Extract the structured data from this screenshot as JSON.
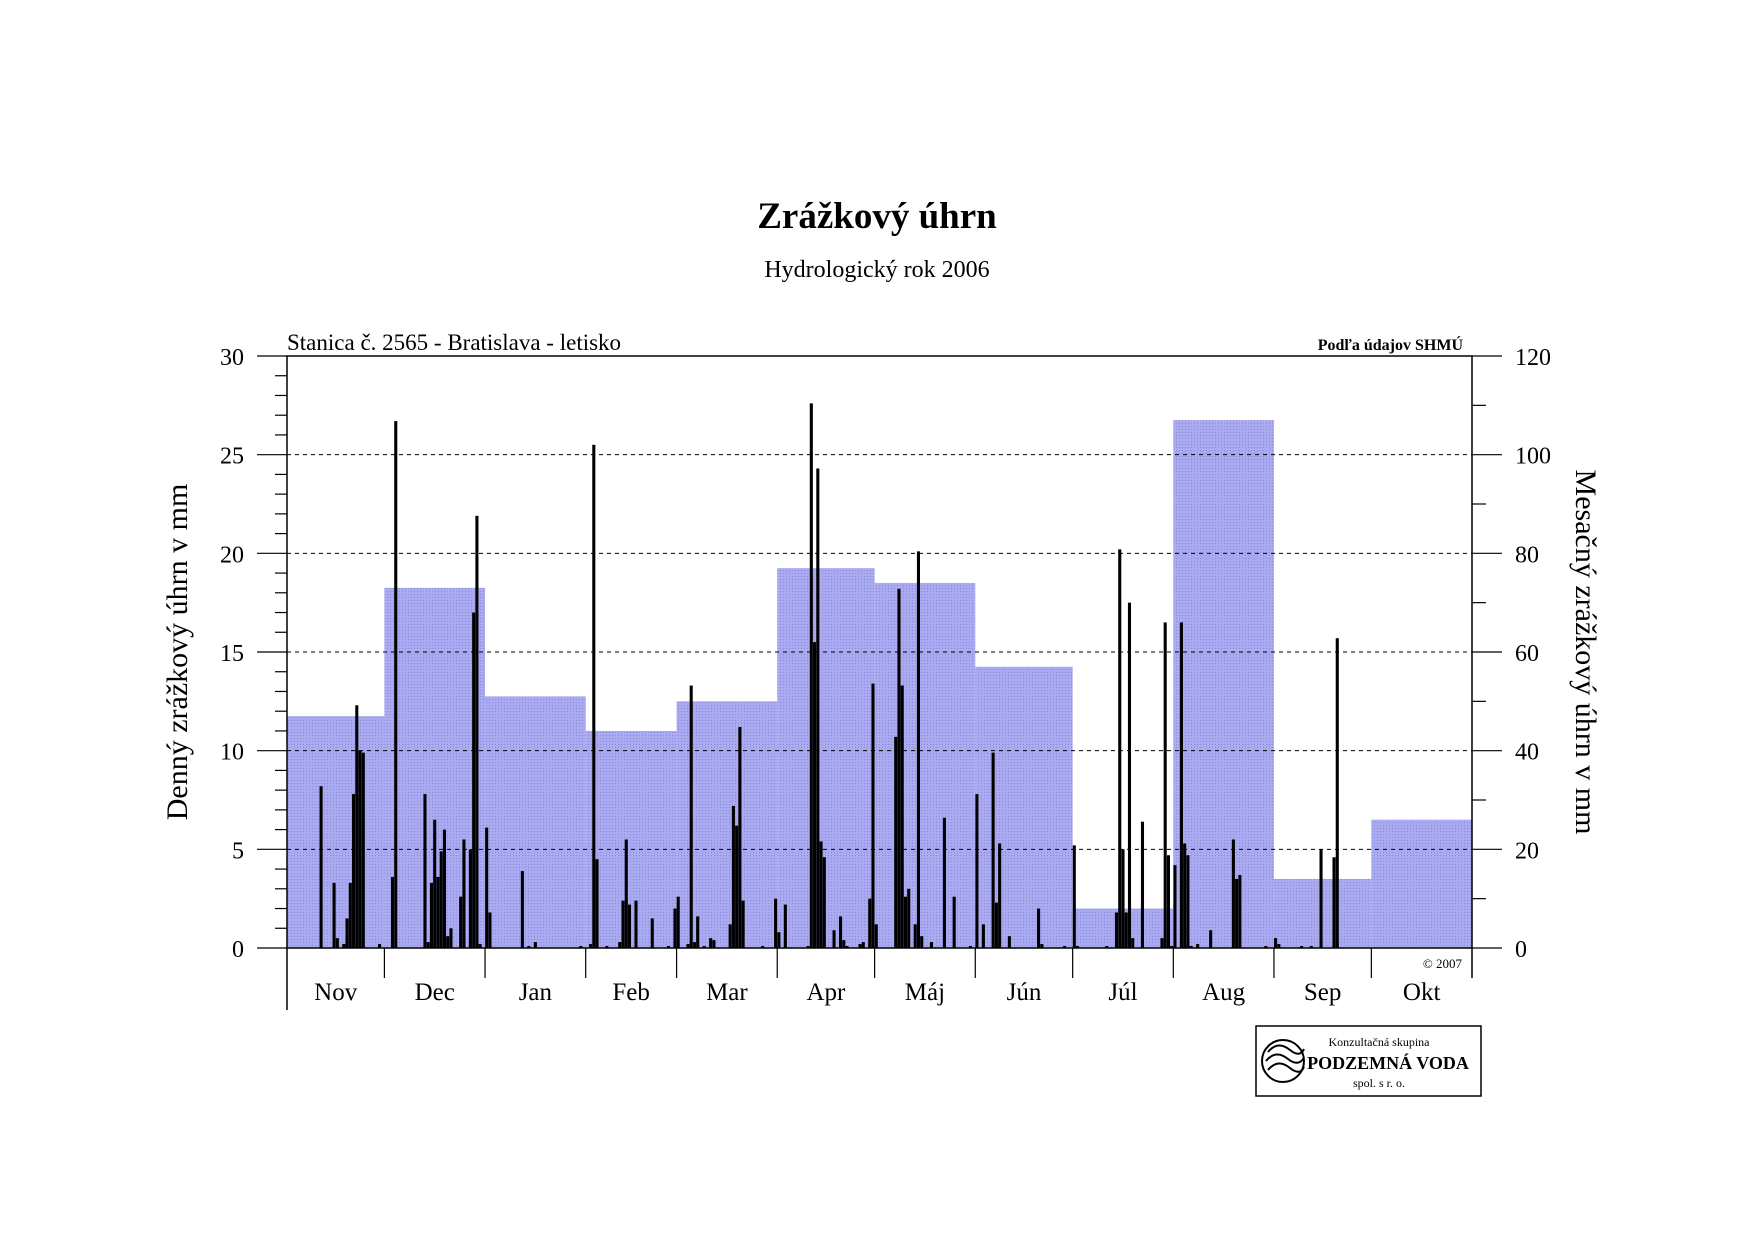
{
  "chart_data": {
    "type": "bar",
    "title": "Zrážkový úhrn",
    "subtitle": "Hydrologický rok 2006",
    "station_label": "Stanica č. 2565 - Bratislava - letisko",
    "source_label": "Podľa údajov SHMÚ",
    "copyright": "© 2007",
    "ylabel_left": "Denný zrážkový úhrn v mm",
    "ylabel_right": "Mesačný zrážkový úhrn v mm",
    "ylim_left": [
      0,
      30
    ],
    "ylim_right": [
      0,
      120
    ],
    "yticks_left": [
      "0",
      "5",
      "10",
      "15",
      "20",
      "25",
      "30"
    ],
    "yticks_right": [
      "0",
      "20",
      "40",
      "60",
      "80",
      "100",
      "120"
    ],
    "grid": "dashed horizontal at 5 mm steps",
    "months": [
      "Nov",
      "Dec",
      "Jan",
      "Feb",
      "Mar",
      "Apr",
      "Máj",
      "Jún",
      "Júl",
      "Aug",
      "Sep",
      "Okt"
    ],
    "month_days": [
      30,
      31,
      31,
      28,
      31,
      30,
      31,
      30,
      31,
      31,
      30,
      31
    ],
    "series": [
      {
        "axis": "right",
        "kind": "monthly_total",
        "color": "#a8a8ee",
        "values": [
          47,
          73,
          51,
          44,
          50,
          77,
          74,
          57,
          8,
          107,
          14,
          26
        ]
      },
      {
        "axis": "left",
        "kind": "daily",
        "color": "#000000",
        "points": [
          [
            10,
            8.2
          ],
          [
            14,
            3.3
          ],
          [
            15,
            0.5
          ],
          [
            17,
            0.2
          ],
          [
            18,
            1.5
          ],
          [
            19,
            3.3
          ],
          [
            20,
            7.8
          ],
          [
            21,
            12.3
          ],
          [
            22,
            10.0
          ],
          [
            23,
            9.9
          ],
          [
            28,
            0.2
          ],
          [
            32,
            3.6
          ],
          [
            33,
            26.7
          ],
          [
            42,
            7.8
          ],
          [
            43,
            0.3
          ],
          [
            44,
            3.3
          ],
          [
            45,
            6.5
          ],
          [
            46,
            3.6
          ],
          [
            47,
            4.9
          ],
          [
            48,
            6.0
          ],
          [
            49,
            0.6
          ],
          [
            50,
            1.0
          ],
          [
            53,
            2.6
          ],
          [
            54,
            5.5
          ],
          [
            56,
            5.0
          ],
          [
            57,
            17.0
          ],
          [
            58,
            21.9
          ],
          [
            59,
            0.2
          ],
          [
            61,
            6.1
          ],
          [
            62,
            1.8
          ],
          [
            72,
            3.9
          ],
          [
            74,
            0.1
          ],
          [
            76,
            0.3
          ],
          [
            90,
            0.1
          ],
          [
            93,
            0.2
          ],
          [
            94,
            25.5
          ],
          [
            95,
            4.5
          ],
          [
            98,
            0.1
          ],
          [
            102,
            0.3
          ],
          [
            103,
            2.4
          ],
          [
            104,
            5.5
          ],
          [
            105,
            2.2
          ],
          [
            107,
            2.4
          ],
          [
            112,
            1.5
          ],
          [
            117,
            0.1
          ],
          [
            119,
            2.0
          ],
          [
            120,
            2.6
          ],
          [
            123,
            0.2
          ],
          [
            124,
            13.3
          ],
          [
            125,
            0.3
          ],
          [
            126,
            1.6
          ],
          [
            128,
            0.1
          ],
          [
            130,
            0.5
          ],
          [
            131,
            0.4
          ],
          [
            136,
            1.2
          ],
          [
            137,
            7.2
          ],
          [
            138,
            6.2
          ],
          [
            139,
            11.2
          ],
          [
            140,
            2.4
          ],
          [
            146,
            0.1
          ],
          [
            150,
            2.5
          ],
          [
            151,
            0.8
          ],
          [
            153,
            2.2
          ],
          [
            160,
            0.1
          ],
          [
            161,
            27.6
          ],
          [
            162,
            15.5
          ],
          [
            163,
            24.3
          ],
          [
            164,
            5.4
          ],
          [
            165,
            4.6
          ],
          [
            168,
            0.9
          ],
          [
            170,
            1.6
          ],
          [
            171,
            0.4
          ],
          [
            172,
            0.1
          ],
          [
            176,
            0.2
          ],
          [
            177,
            0.3
          ],
          [
            179,
            2.5
          ],
          [
            180,
            13.4
          ],
          [
            181,
            1.2
          ],
          [
            187,
            10.7
          ],
          [
            188,
            18.2
          ],
          [
            189,
            13.3
          ],
          [
            190,
            2.6
          ],
          [
            191,
            3.0
          ],
          [
            193,
            1.2
          ],
          [
            194,
            20.1
          ],
          [
            195,
            0.6
          ],
          [
            198,
            0.3
          ],
          [
            202,
            6.6
          ],
          [
            205,
            2.6
          ],
          [
            210,
            0.1
          ],
          [
            212,
            7.8
          ],
          [
            214,
            1.2
          ],
          [
            217,
            9.9
          ],
          [
            218,
            2.3
          ],
          [
            219,
            5.3
          ],
          [
            222,
            0.6
          ],
          [
            231,
            2.0
          ],
          [
            232,
            0.2
          ],
          [
            239,
            0.1
          ],
          [
            242,
            5.2
          ],
          [
            243,
            0.1
          ],
          [
            252,
            0.1
          ],
          [
            255,
            1.8
          ],
          [
            256,
            20.2
          ],
          [
            257,
            5.0
          ],
          [
            258,
            1.8
          ],
          [
            259,
            17.5
          ],
          [
            260,
            0.5
          ],
          [
            263,
            6.4
          ],
          [
            269,
            0.5
          ],
          [
            270,
            16.5
          ],
          [
            271,
            4.7
          ],
          [
            272,
            0.1
          ],
          [
            273,
            4.2
          ],
          [
            275,
            16.5
          ],
          [
            276,
            5.3
          ],
          [
            277,
            4.7
          ],
          [
            278,
            0.1
          ],
          [
            280,
            0.2
          ],
          [
            284,
            0.9
          ],
          [
            291,
            5.5
          ],
          [
            292,
            3.5
          ],
          [
            293,
            3.7
          ],
          [
            301,
            0.1
          ],
          [
            304,
            0.5
          ],
          [
            305,
            0.2
          ],
          [
            312,
            0.1
          ],
          [
            315,
            0.1
          ],
          [
            318,
            5.0
          ],
          [
            322,
            4.6
          ],
          [
            323,
            15.7
          ]
        ]
      }
    ]
  },
  "logo": {
    "line1": "Konzultačná skupina",
    "line2": "PODZEMNÁ VODA",
    "line3": "spol. s r. o."
  }
}
